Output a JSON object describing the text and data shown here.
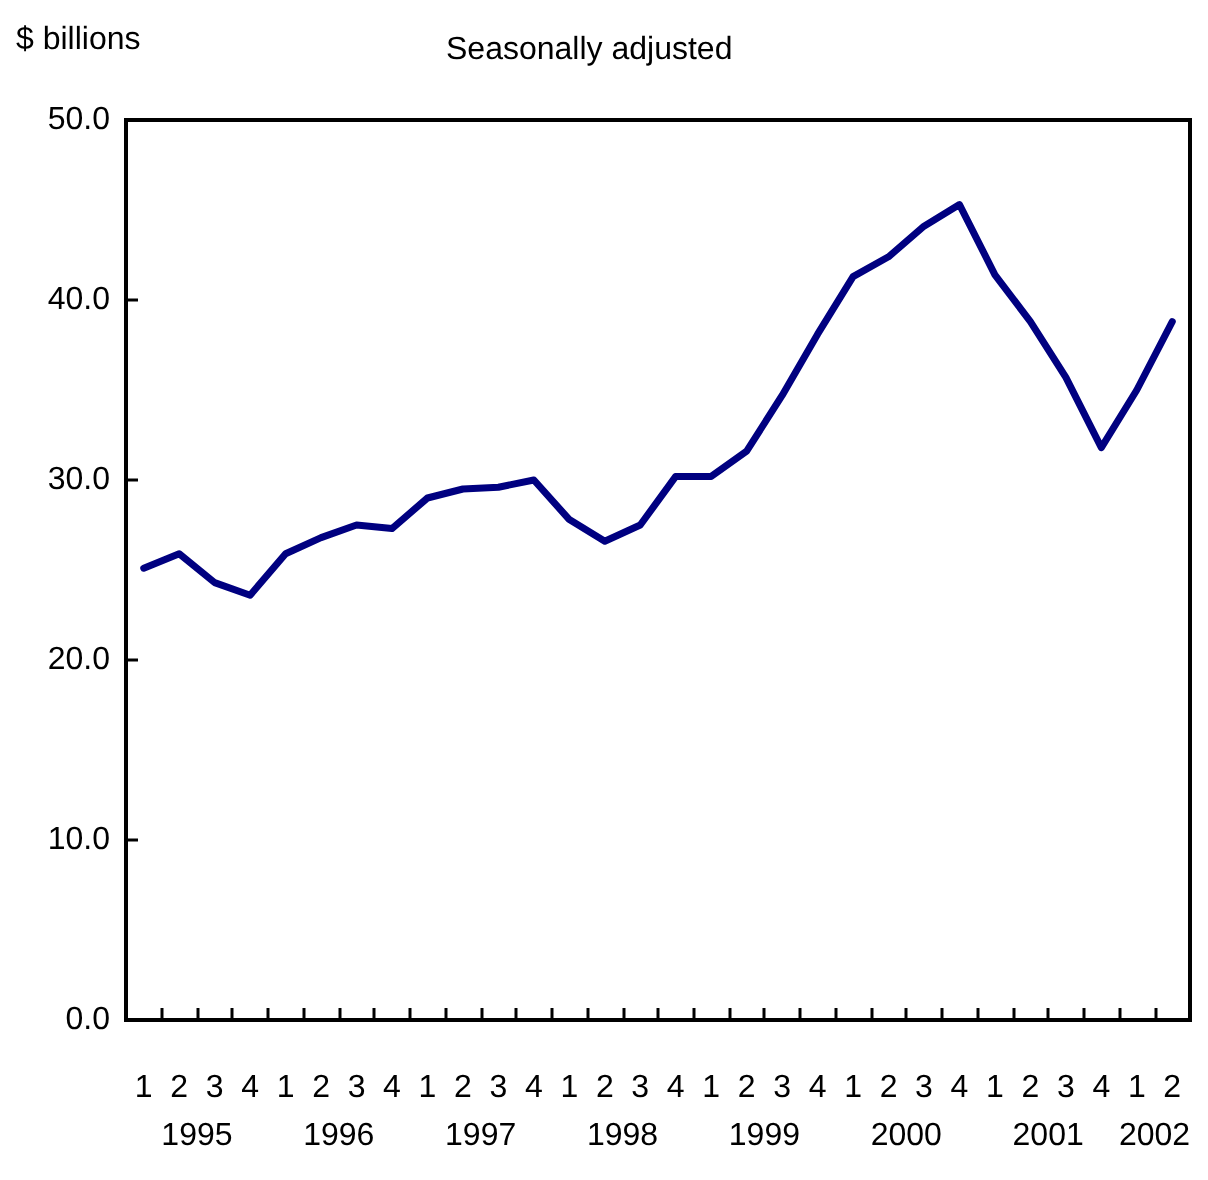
{
  "chart_data": {
    "type": "line",
    "title": "Seasonally adjusted",
    "ylabel": "$ billions",
    "categories": [
      "1",
      "2",
      "3",
      "4",
      "1",
      "2",
      "3",
      "4",
      "1",
      "2",
      "3",
      "4",
      "1",
      "2",
      "3",
      "4",
      "1",
      "2",
      "3",
      "4",
      "1",
      "2",
      "3",
      "4",
      "1",
      "2",
      "3",
      "4",
      "1",
      "2"
    ],
    "annotations": [
      "1995",
      "1996",
      "1997",
      "1998",
      "1999",
      "2000",
      "2001",
      "2002"
    ],
    "series": [
      {
        "color": "#000080",
        "values": [
          25.1,
          25.9,
          24.3,
          23.6,
          25.9,
          26.8,
          27.5,
          27.3,
          29.0,
          29.5,
          29.6,
          30.0,
          27.8,
          26.6,
          27.5,
          30.2,
          30.2,
          31.6,
          34.7,
          38.1,
          41.3,
          42.4,
          44.1,
          45.3,
          41.4,
          38.8,
          35.7,
          31.8,
          35.0,
          38.8
        ]
      }
    ],
    "ylim": [
      0,
      50
    ],
    "yticks": [
      {
        "value": 0,
        "label": "0.0"
      },
      {
        "value": 10,
        "label": "10.0"
      },
      {
        "value": 20,
        "label": "20.0"
      },
      {
        "value": 30,
        "label": "30.0"
      },
      {
        "value": 40,
        "label": "40.0"
      },
      {
        "value": 50,
        "label": "50.0"
      }
    ],
    "grid": false,
    "marker": "none",
    "line_style": "solid"
  }
}
